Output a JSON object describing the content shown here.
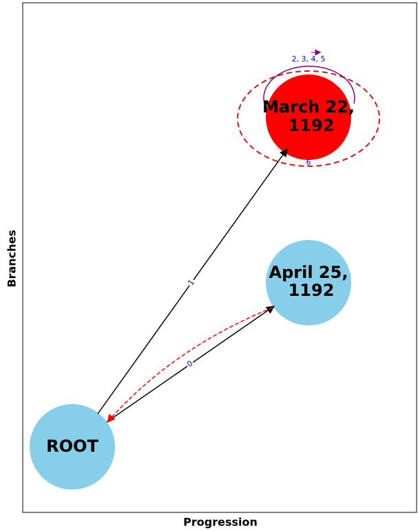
{
  "axes": {
    "xlabel": "Progression",
    "ylabel": "Branches"
  },
  "nodes": [
    {
      "lines": [
        "ROOT"
      ]
    },
    {
      "lines": [
        "April 25,",
        "1192"
      ]
    },
    {
      "lines": [
        "March 22,",
        "1192"
      ]
    }
  ],
  "edges": [
    {
      "label": "0"
    },
    {
      "label": "1"
    },
    {
      "label": "2, 3, 4, 5"
    },
    {
      "label": "6"
    }
  ]
}
